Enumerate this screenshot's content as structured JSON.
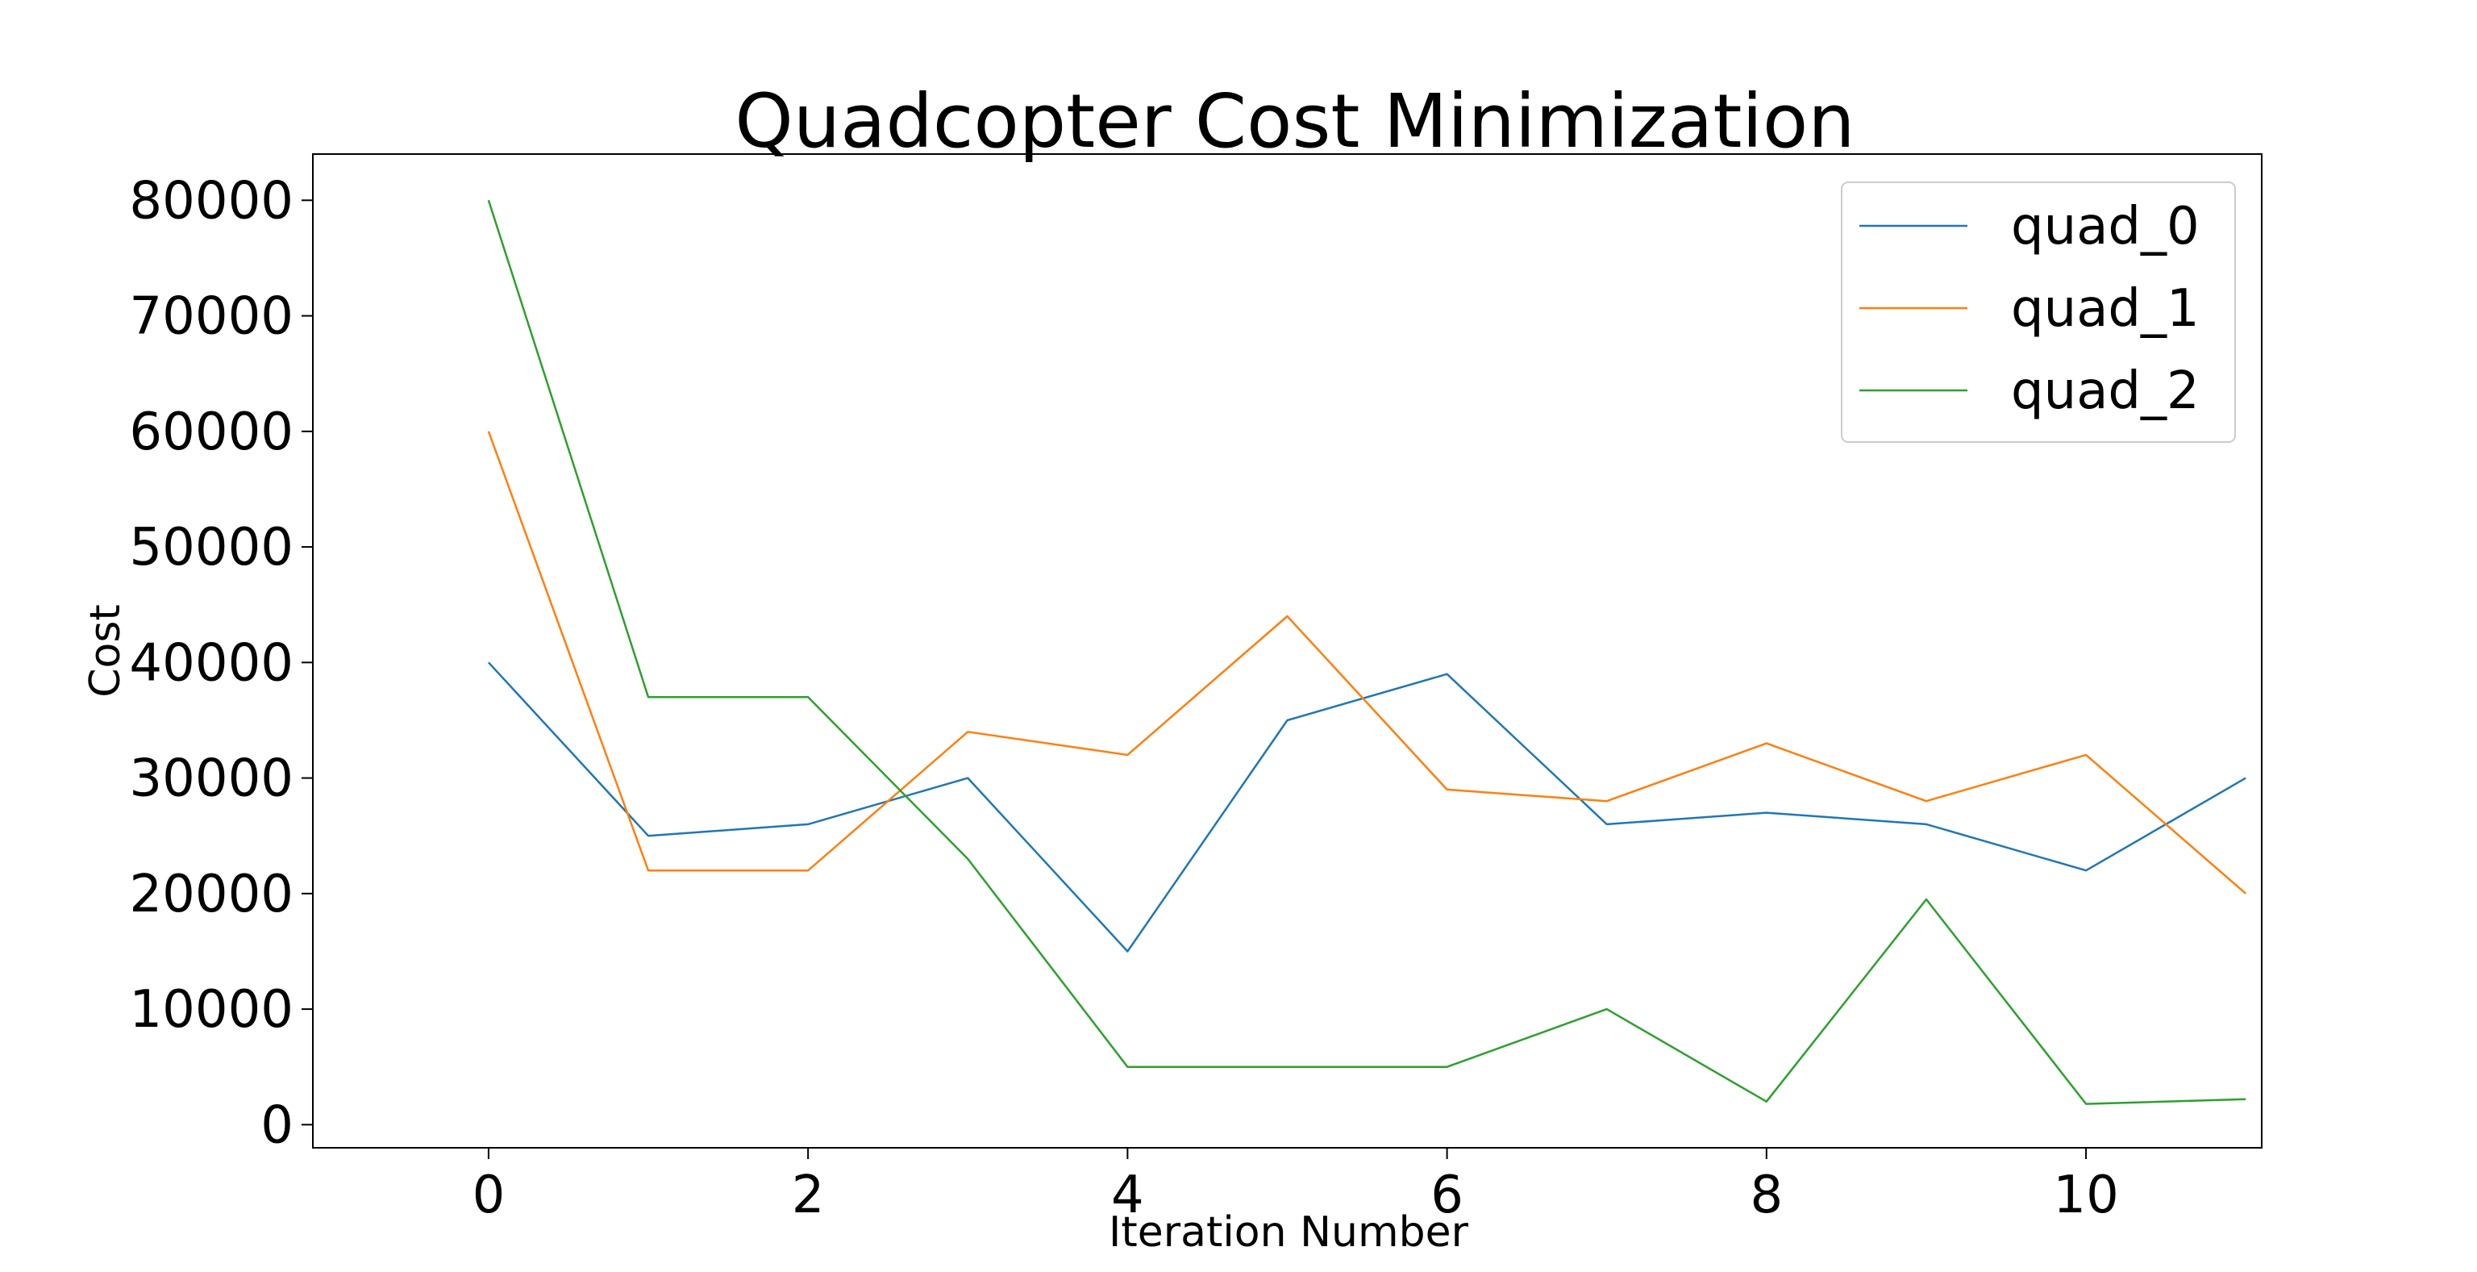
{
  "chart_data": {
    "type": "line",
    "title": "Quadcopter Cost Minimization",
    "xlabel": "Iteration Number",
    "ylabel": "Cost",
    "x": [
      0,
      1,
      2,
      3,
      4,
      5,
      6,
      7,
      8,
      9,
      10,
      11
    ],
    "xlim": [
      -1.1,
      11.1
    ],
    "ylim": [
      -2000,
      84000
    ],
    "xticks": [
      0,
      2,
      4,
      6,
      8,
      10
    ],
    "yticks": [
      0,
      10000,
      20000,
      30000,
      40000,
      50000,
      60000,
      70000,
      80000
    ],
    "grid": false,
    "legend_position": "top-right",
    "series": [
      {
        "name": "quad_0",
        "color": "#1f77b4",
        "values": [
          40000,
          25000,
          26000,
          30000,
          15000,
          35000,
          39000,
          26000,
          27000,
          26000,
          22000,
          30000
        ]
      },
      {
        "name": "quad_1",
        "color": "#ff7f0e",
        "values": [
          60000,
          22000,
          22000,
          34000,
          32000,
          44000,
          29000,
          28000,
          33000,
          28000,
          32000,
          20000
        ]
      },
      {
        "name": "quad_2",
        "color": "#2ca02c",
        "values": [
          80000,
          37000,
          37000,
          23000,
          5000,
          5000,
          5000,
          10000,
          2000,
          19500,
          1800,
          2200
        ]
      }
    ]
  }
}
